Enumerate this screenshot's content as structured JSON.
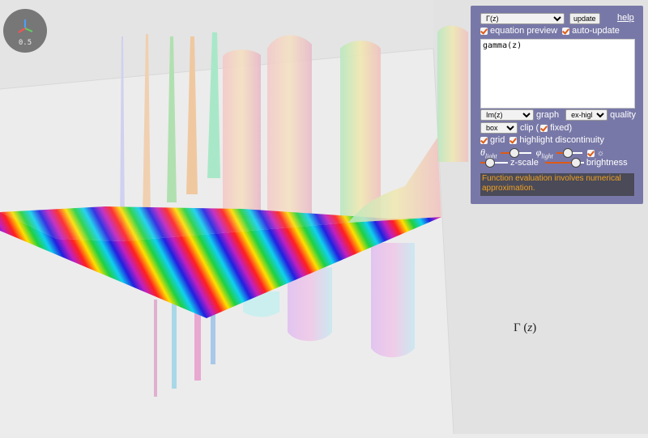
{
  "function_select": {
    "selected": "Γ(z)"
  },
  "update_label": "update",
  "help_label": "help",
  "equation_preview_label": "equation preview",
  "auto_update_label": "auto-update",
  "equation_text": "gamma(z)",
  "graph_select": {
    "selected": "Im(z)"
  },
  "graph_label": "graph",
  "quality_select": {
    "selected": "ex-high"
  },
  "quality_label": "quality",
  "clip_select": {
    "selected": "box"
  },
  "clip_label": "clip (",
  "fixed_label": "fixed)",
  "grid_label": "grid",
  "highlight_label": "highlight discontinuity",
  "theta_symbol": "θ",
  "theta_sub": "light",
  "phi_symbol": "φ",
  "phi_sub": "light",
  "sun_symbol": "☼",
  "zscale_label": "z-scale",
  "brightness_label": "brightness",
  "sliders": {
    "theta": 0.45,
    "phi": 0.45,
    "zscale": 0.35,
    "brightness": 0.8
  },
  "message": "Function evaluation involves numerical approximation.",
  "formula": {
    "prefix": "Γ (",
    "var": "z",
    "suffix": ")"
  },
  "orientation_zoom": "0.5",
  "colors": {
    "panel": "#7878a8",
    "accent": "#e05a14",
    "message_text": "#f0a020",
    "message_bg": "#4a4a58"
  }
}
